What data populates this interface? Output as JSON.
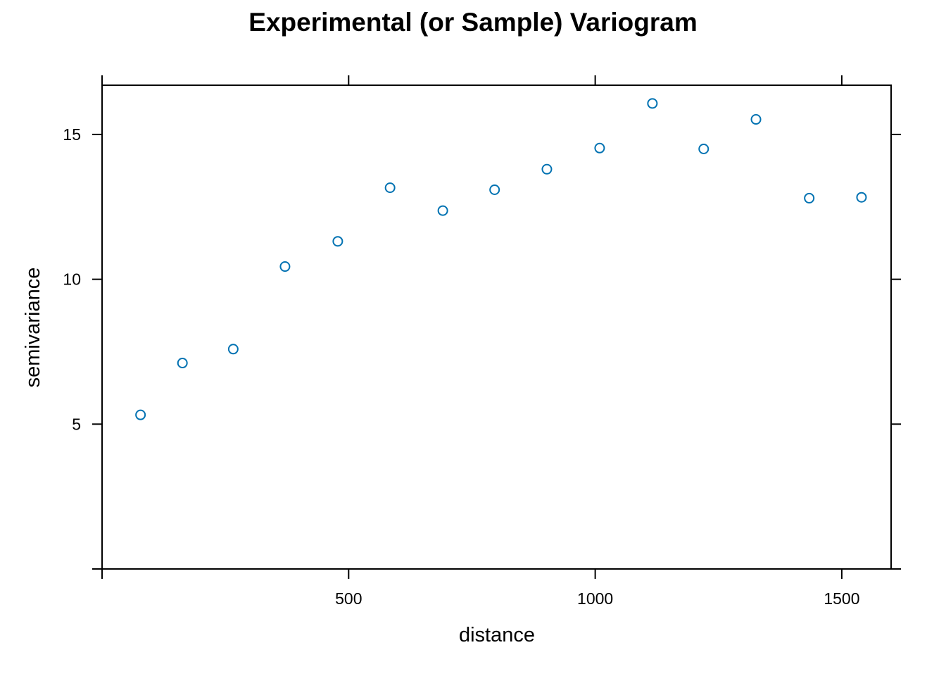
{
  "chart_data": {
    "type": "scatter",
    "title": "Experimental (or Sample) Variogram",
    "xlabel": "distance",
    "ylabel": "semivariance",
    "xlim": [
      0,
      1600
    ],
    "ylim": [
      0,
      16.7
    ],
    "x_ticks": [
      {
        "value": 0,
        "label": ""
      },
      {
        "value": 500,
        "label": "500"
      },
      {
        "value": 1000,
        "label": "1000"
      },
      {
        "value": 1500,
        "label": "1500"
      }
    ],
    "y_ticks": [
      {
        "value": 0,
        "label": ""
      },
      {
        "value": 5,
        "label": "5"
      },
      {
        "value": 10,
        "label": "10"
      },
      {
        "value": 15,
        "label": "15"
      }
    ],
    "grid": false,
    "point_color": "#0072B2",
    "series": [
      {
        "x": [
          78,
          163,
          266,
          371,
          478,
          584,
          691,
          796,
          902,
          1009,
          1116,
          1220,
          1326,
          1434,
          1540
        ],
        "y": [
          5.32,
          7.11,
          7.59,
          10.44,
          11.31,
          13.16,
          12.37,
          13.09,
          13.8,
          14.53,
          16.07,
          14.5,
          15.52,
          12.8,
          12.83
        ]
      }
    ]
  }
}
